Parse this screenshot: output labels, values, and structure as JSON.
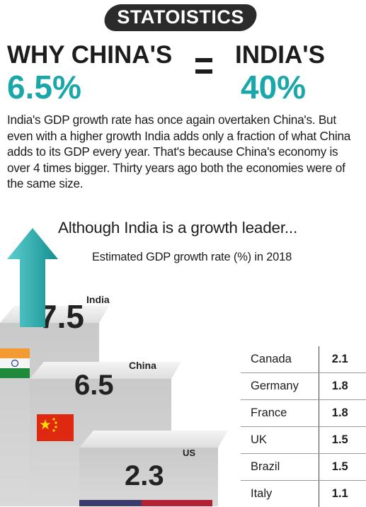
{
  "brand": "STATOISTICS",
  "headline": {
    "left": "WHY CHINA'S",
    "right": "INDIA'S",
    "left_value": "6.5%",
    "right_value": "40%"
  },
  "intro": "India's GDP growth rate has once again overtaken China's. But even with a higher growth India adds only a fraction of what China adds to its GDP every year. That's because China's economy is over 4 times bigger. Thirty years ago both the economies were of the same size.",
  "subhead": "Although India is a growth leader...",
  "colors": {
    "teal": "#1aa7a9",
    "dark": "#1c1c1c"
  },
  "chart_data": {
    "type": "bar",
    "title": "Estimated GDP growth rate (%) in 2018",
    "steps": [
      {
        "name": "India",
        "value": 7.5,
        "label": "7.5"
      },
      {
        "name": "China",
        "value": 6.5,
        "label": "6.5"
      },
      {
        "name": "US",
        "value": 2.3,
        "label": "2.3"
      }
    ],
    "table": [
      {
        "country": "Canada",
        "value": 2.1,
        "label": "2.1"
      },
      {
        "country": "Germany",
        "value": 1.8,
        "label": "1.8"
      },
      {
        "country": "France",
        "value": 1.8,
        "label": "1.8"
      },
      {
        "country": "UK",
        "value": 1.5,
        "label": "1.5"
      },
      {
        "country": "Brazil",
        "value": 1.5,
        "label": "1.5"
      },
      {
        "country": "Italy",
        "value": 1.1,
        "label": "1.1"
      }
    ]
  }
}
